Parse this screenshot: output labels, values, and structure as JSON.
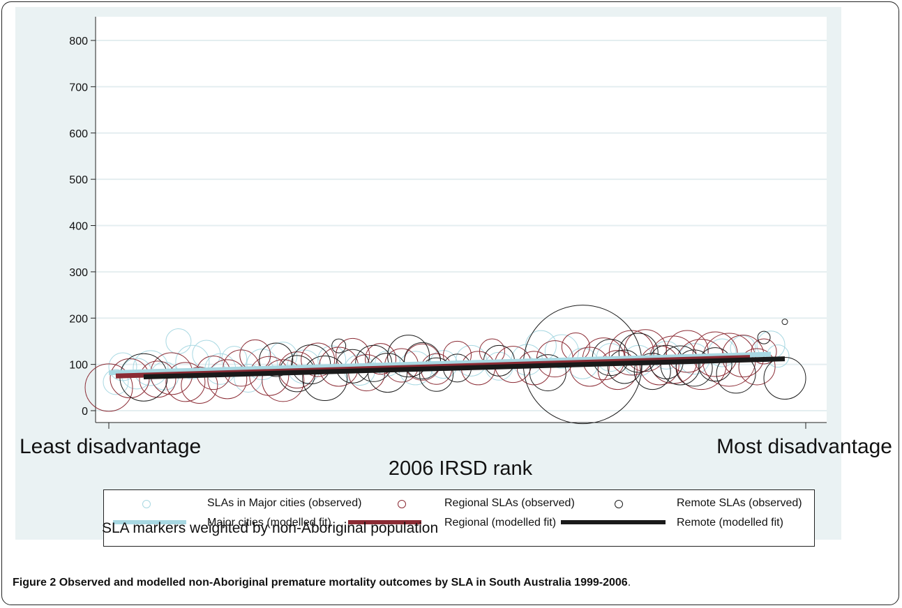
{
  "caption": {
    "label": "Figure 2",
    "text": "Observed and modelled non-Aboriginal premature mortality outcomes by SLA in South Australia 1999-2006",
    "end": "."
  },
  "note": "SLA markers weighted by non-Aboriginal population",
  "chart_data": {
    "type": "scatter",
    "title": "",
    "xlabel": "2006 IRSD rank",
    "ylabel": "",
    "x_end_labels": {
      "left": "Least disadvantage",
      "right": "Most disadvantage"
    },
    "xlim": [
      0,
      100
    ],
    "ylim": [
      0,
      800
    ],
    "yticks": [
      0,
      100,
      200,
      300,
      400,
      500,
      600,
      700,
      800
    ],
    "grid": true,
    "legend_position": "bottom",
    "colors": {
      "major": "#a8d8e2",
      "regional": "#8b2b34",
      "remote": "#1a1a1a",
      "background": "#eaf2f3"
    },
    "legend": [
      {
        "label": "SLAs in Major cities (observed)",
        "symbol": "circle",
        "color": "#a8d8e2"
      },
      {
        "label": "Regional SLAs (observed)",
        "symbol": "circle",
        "color": "#8b2b34"
      },
      {
        "label": "Remote SLAs (observed)",
        "symbol": "circle",
        "color": "#1a1a1a"
      },
      {
        "label": "Major cities (modelled fit)",
        "symbol": "line",
        "color": "#a8d8e2"
      },
      {
        "label": "Regional (modelled fit)",
        "symbol": "line",
        "color": "#8b2b34"
      },
      {
        "label": "Remote (modelled fit)",
        "symbol": "line",
        "color": "#1a1a1a"
      }
    ],
    "fit_lines": [
      {
        "name": "Major cities (modelled fit)",
        "x": [
          0,
          95
        ],
        "y": [
          82,
          122
        ]
      },
      {
        "name": "Regional (modelled fit)",
        "x": [
          1,
          92
        ],
        "y": [
          75,
          115
        ]
      },
      {
        "name": "Remote (modelled fit)",
        "x": [
          5,
          97
        ],
        "y": [
          73,
          112
        ]
      }
    ],
    "series": [
      {
        "name": "SLAs in Major cities (observed)",
        "points": [
          {
            "x": 1,
            "y": 62,
            "w": 18
          },
          {
            "x": 2,
            "y": 95,
            "w": 20
          },
          {
            "x": 4,
            "y": 80,
            "w": 22
          },
          {
            "x": 6,
            "y": 92,
            "w": 25
          },
          {
            "x": 8,
            "y": 75,
            "w": 20
          },
          {
            "x": 10,
            "y": 150,
            "w": 18
          },
          {
            "x": 12,
            "y": 105,
            "w": 24
          },
          {
            "x": 14,
            "y": 122,
            "w": 20
          },
          {
            "x": 16,
            "y": 90,
            "w": 22
          },
          {
            "x": 18,
            "y": 112,
            "w": 18
          },
          {
            "x": 20,
            "y": 70,
            "w": 20
          },
          {
            "x": 22,
            "y": 100,
            "w": 22
          },
          {
            "x": 25,
            "y": 118,
            "w": 20
          },
          {
            "x": 28,
            "y": 95,
            "w": 24
          },
          {
            "x": 32,
            "y": 110,
            "w": 20
          },
          {
            "x": 36,
            "y": 88,
            "w": 22
          },
          {
            "x": 40,
            "y": 102,
            "w": 18
          },
          {
            "x": 44,
            "y": 92,
            "w": 24
          },
          {
            "x": 48,
            "y": 100,
            "w": 20
          },
          {
            "x": 52,
            "y": 108,
            "w": 22
          },
          {
            "x": 56,
            "y": 96,
            "w": 20
          },
          {
            "x": 60,
            "y": 110,
            "w": 22
          },
          {
            "x": 62,
            "y": 140,
            "w": 22
          },
          {
            "x": 65,
            "y": 128,
            "w": 24
          },
          {
            "x": 68,
            "y": 102,
            "w": 22
          },
          {
            "x": 72,
            "y": 115,
            "w": 20
          },
          {
            "x": 76,
            "y": 108,
            "w": 22
          },
          {
            "x": 80,
            "y": 120,
            "w": 20
          },
          {
            "x": 84,
            "y": 112,
            "w": 22
          },
          {
            "x": 88,
            "y": 125,
            "w": 20
          },
          {
            "x": 91,
            "y": 135,
            "w": 18
          },
          {
            "x": 95,
            "y": 142,
            "w": 20
          },
          {
            "x": 96,
            "y": 118,
            "w": 16
          }
        ]
      },
      {
        "name": "Regional SLAs (observed)",
        "points": [
          {
            "x": 0,
            "y": 50,
            "w": 34
          },
          {
            "x": 3,
            "y": 70,
            "w": 28
          },
          {
            "x": 7,
            "y": 68,
            "w": 26
          },
          {
            "x": 9,
            "y": 80,
            "w": 30
          },
          {
            "x": 11,
            "y": 62,
            "w": 28
          },
          {
            "x": 13,
            "y": 55,
            "w": 26
          },
          {
            "x": 15,
            "y": 82,
            "w": 24
          },
          {
            "x": 17,
            "y": 68,
            "w": 28
          },
          {
            "x": 19,
            "y": 92,
            "w": 26
          },
          {
            "x": 21,
            "y": 120,
            "w": 22
          },
          {
            "x": 23,
            "y": 75,
            "w": 28
          },
          {
            "x": 25,
            "y": 65,
            "w": 30
          },
          {
            "x": 27,
            "y": 88,
            "w": 26
          },
          {
            "x": 30,
            "y": 110,
            "w": 24
          },
          {
            "x": 33,
            "y": 95,
            "w": 28
          },
          {
            "x": 35,
            "y": 120,
            "w": 24
          },
          {
            "x": 37,
            "y": 82,
            "w": 26
          },
          {
            "x": 39,
            "y": 112,
            "w": 22
          },
          {
            "x": 42,
            "y": 98,
            "w": 24
          },
          {
            "x": 45,
            "y": 105,
            "w": 26
          },
          {
            "x": 47,
            "y": 90,
            "w": 22
          },
          {
            "x": 50,
            "y": 120,
            "w": 20
          },
          {
            "x": 53,
            "y": 92,
            "w": 24
          },
          {
            "x": 55,
            "y": 128,
            "w": 18
          },
          {
            "x": 58,
            "y": 100,
            "w": 26
          },
          {
            "x": 61,
            "y": 92,
            "w": 24
          },
          {
            "x": 64,
            "y": 112,
            "w": 26
          },
          {
            "x": 67,
            "y": 138,
            "w": 20
          },
          {
            "x": 69,
            "y": 95,
            "w": 28
          },
          {
            "x": 71,
            "y": 112,
            "w": 30
          },
          {
            "x": 73,
            "y": 88,
            "w": 28
          },
          {
            "x": 75,
            "y": 125,
            "w": 32
          },
          {
            "x": 77,
            "y": 130,
            "w": 30
          },
          {
            "x": 79,
            "y": 98,
            "w": 28
          },
          {
            "x": 81,
            "y": 110,
            "w": 34
          },
          {
            "x": 83,
            "y": 128,
            "w": 30
          },
          {
            "x": 85,
            "y": 100,
            "w": 36
          },
          {
            "x": 87,
            "y": 122,
            "w": 32
          },
          {
            "x": 89,
            "y": 110,
            "w": 38
          },
          {
            "x": 91,
            "y": 118,
            "w": 30
          },
          {
            "x": 93,
            "y": 95,
            "w": 26
          },
          {
            "x": 94,
            "y": 128,
            "w": 18
          }
        ]
      },
      {
        "name": "Remote SLAs (observed)",
        "points": [
          {
            "x": 5,
            "y": 72,
            "w": 34
          },
          {
            "x": 24,
            "y": 110,
            "w": 24
          },
          {
            "x": 27,
            "y": 80,
            "w": 26
          },
          {
            "x": 29,
            "y": 100,
            "w": 28
          },
          {
            "x": 31,
            "y": 70,
            "w": 32
          },
          {
            "x": 33,
            "y": 140,
            "w": 10
          },
          {
            "x": 35,
            "y": 96,
            "w": 24
          },
          {
            "x": 38,
            "y": 102,
            "w": 26
          },
          {
            "x": 40,
            "y": 82,
            "w": 28
          },
          {
            "x": 43,
            "y": 118,
            "w": 30
          },
          {
            "x": 45,
            "y": 108,
            "w": 26
          },
          {
            "x": 47,
            "y": 78,
            "w": 24
          },
          {
            "x": 50,
            "y": 92,
            "w": 20
          },
          {
            "x": 56,
            "y": 108,
            "w": 22
          },
          {
            "x": 63,
            "y": 82,
            "w": 26
          },
          {
            "x": 68,
            "y": 100,
            "w": 85
          },
          {
            "x": 72,
            "y": 115,
            "w": 26
          },
          {
            "x": 74,
            "y": 95,
            "w": 24
          },
          {
            "x": 76,
            "y": 125,
            "w": 28
          },
          {
            "x": 78,
            "y": 85,
            "w": 26
          },
          {
            "x": 80,
            "y": 105,
            "w": 24
          },
          {
            "x": 82,
            "y": 98,
            "w": 28
          },
          {
            "x": 84,
            "y": 92,
            "w": 26
          },
          {
            "x": 87,
            "y": 100,
            "w": 24
          },
          {
            "x": 90,
            "y": 80,
            "w": 28
          },
          {
            "x": 94,
            "y": 158,
            "w": 9
          },
          {
            "x": 97,
            "y": 70,
            "w": 30
          },
          {
            "x": 97,
            "y": 192,
            "w": 4
          }
        ]
      }
    ]
  }
}
